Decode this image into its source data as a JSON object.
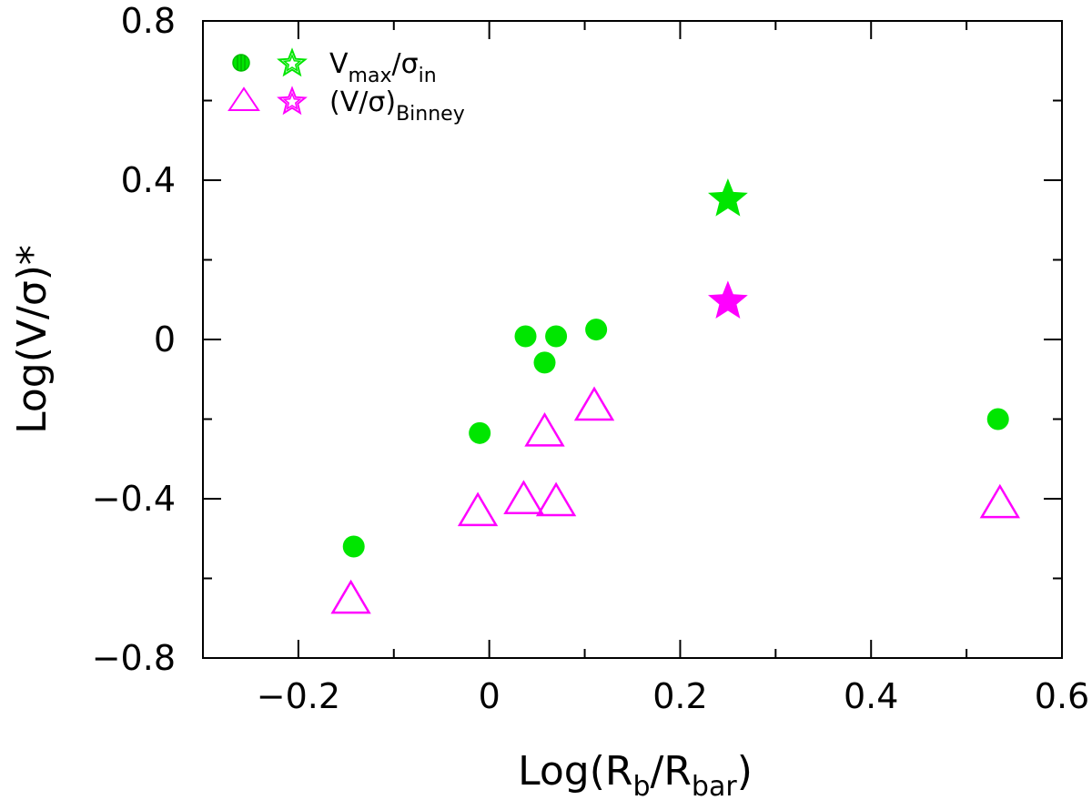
{
  "chart_data": {
    "type": "scatter",
    "title": "",
    "xlabel": {
      "main": "Log(R",
      "sub1": "b",
      "mid": "/R",
      "sub2": "bar",
      "end": ")"
    },
    "ylabel": "Log(V/σ)*",
    "xlim": [
      -0.3,
      0.6
    ],
    "ylim": [
      -0.8,
      0.8
    ],
    "x_ticks": [
      -0.2,
      0,
      0.2,
      0.4,
      0.6
    ],
    "x_tick_labels": [
      "−0.2",
      "0",
      "0.2",
      "0.4",
      "0.6"
    ],
    "y_ticks": [
      -0.8,
      -0.4,
      0,
      0.4,
      0.8
    ],
    "y_tick_labels": [
      "−0.8",
      "−0.4",
      "0",
      "0.4",
      "0.8"
    ],
    "grid": false,
    "legend_position": "top-left",
    "legend": [
      {
        "main": "V",
        "sub": "max",
        "mid": "/σ",
        "sub2": "in"
      },
      {
        "main": "(V/σ)",
        "sub": "Binney",
        "mid": "",
        "sub2": ""
      }
    ],
    "colors": {
      "green": "#00e600",
      "magenta": "#ff00ff"
    },
    "series": [
      {
        "name": "Vmax/σin",
        "marker": "filled-circle",
        "color": "#00e600",
        "points": [
          {
            "x": -0.142,
            "y": -0.52
          },
          {
            "x": -0.01,
            "y": -0.235
          },
          {
            "x": 0.038,
            "y": 0.008
          },
          {
            "x": 0.07,
            "y": 0.008
          },
          {
            "x": 0.058,
            "y": -0.058
          },
          {
            "x": 0.112,
            "y": 0.025
          },
          {
            "x": 0.533,
            "y": -0.2
          }
        ]
      },
      {
        "name": "(V/σ)Binney",
        "marker": "open-triangle",
        "color": "#ff00ff",
        "points": [
          {
            "x": -0.145,
            "y": -0.655
          },
          {
            "x": -0.012,
            "y": -0.435
          },
          {
            "x": 0.036,
            "y": -0.405
          },
          {
            "x": 0.07,
            "y": -0.41
          },
          {
            "x": 0.058,
            "y": -0.235
          },
          {
            "x": 0.11,
            "y": -0.17
          },
          {
            "x": 0.535,
            "y": -0.415
          }
        ]
      },
      {
        "name": "Vmax/σin (star)",
        "marker": "filled-star",
        "color": "#00e600",
        "points": [
          {
            "x": 0.25,
            "y": 0.352
          }
        ]
      },
      {
        "name": "(V/σ)Binney (star)",
        "marker": "filled-star",
        "color": "#ff00ff",
        "points": [
          {
            "x": 0.25,
            "y": 0.095
          }
        ]
      }
    ]
  }
}
